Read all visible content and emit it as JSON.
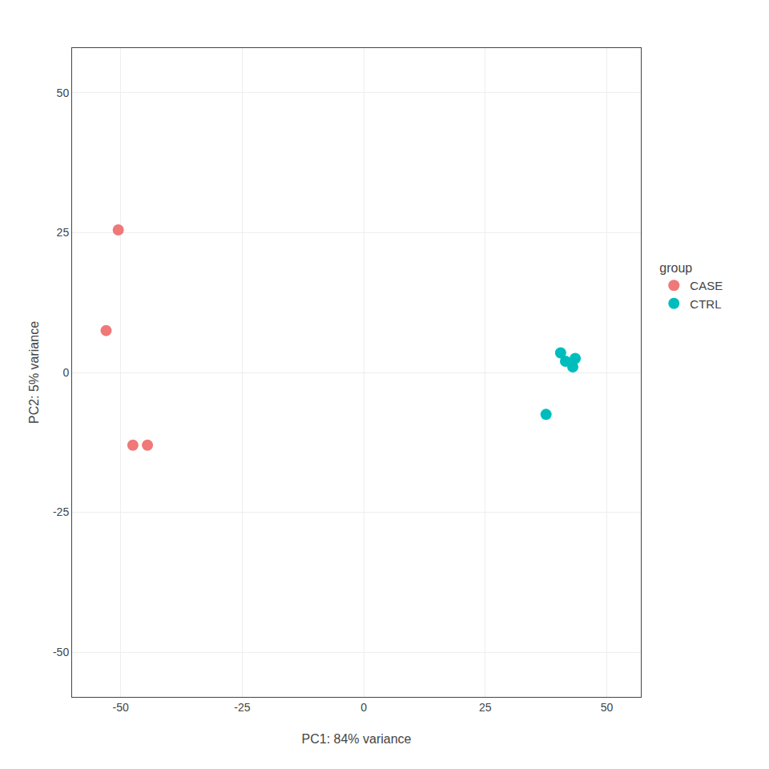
{
  "chart_data": {
    "type": "scatter",
    "xlabel": "PC1: 84% variance",
    "ylabel": "PC2: 5% variance",
    "xlim": [
      -60,
      57
    ],
    "ylim": [
      -58,
      58
    ],
    "xticks": [
      -50,
      -25,
      0,
      25,
      50
    ],
    "yticks": [
      -50,
      -25,
      0,
      25,
      50
    ],
    "grid": true,
    "legend": "right",
    "legend_title": "group",
    "marker": "circle",
    "series": [
      {
        "name": "CASE",
        "color": "#F07878",
        "x": [
          -50.5,
          -53.0,
          -47.5,
          -44.5
        ],
        "y": [
          25.5,
          7.5,
          -13.0,
          -13.0
        ]
      },
      {
        "name": "CTRL",
        "color": "#00BDBD",
        "x": [
          37.5,
          40.5,
          41.5,
          43.0,
          43.5
        ],
        "y": [
          -7.5,
          3.5,
          2.0,
          1.0,
          2.5
        ]
      }
    ]
  }
}
